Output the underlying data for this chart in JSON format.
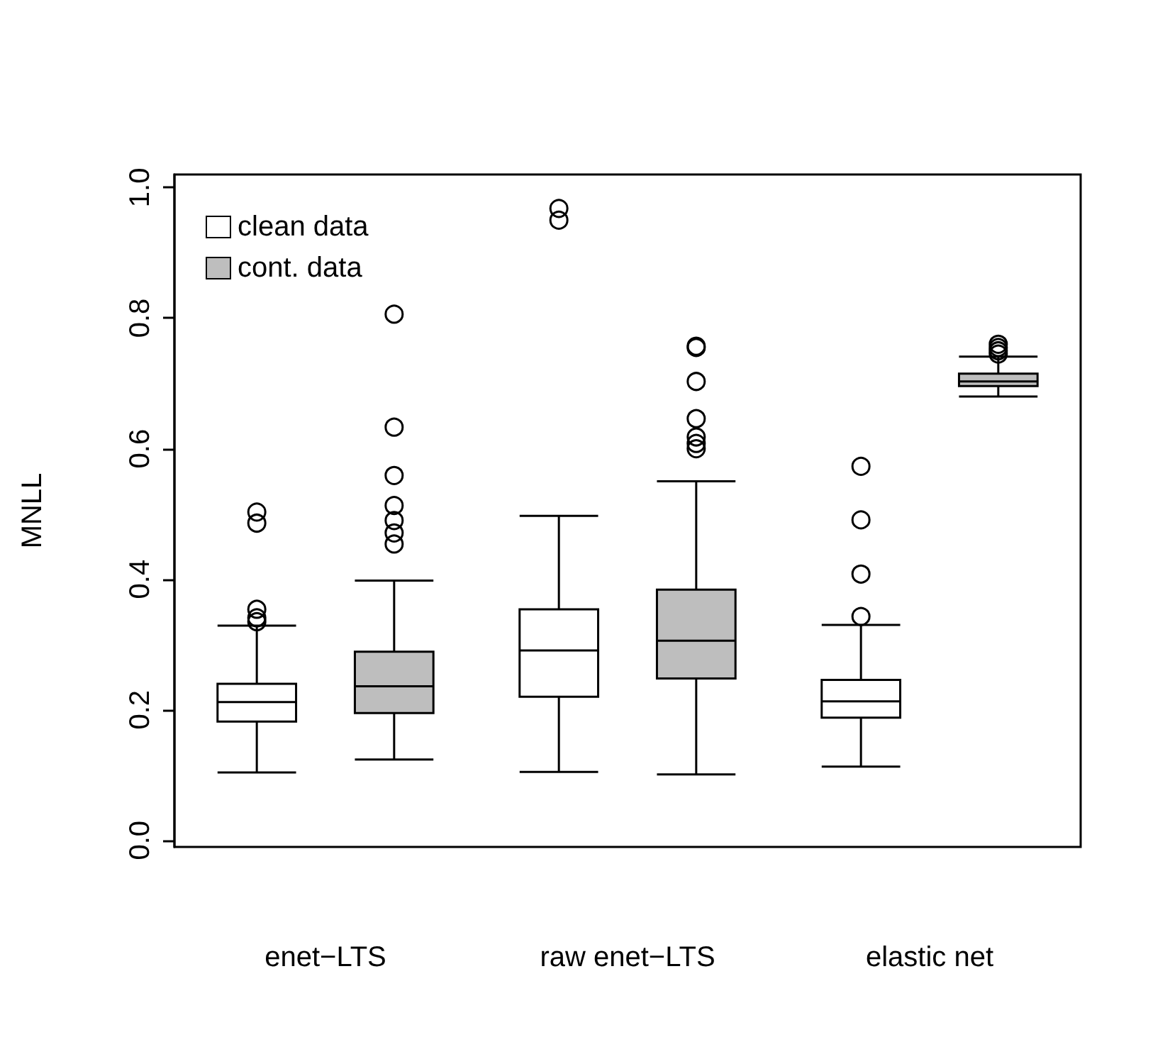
{
  "chart_data": {
    "type": "box",
    "ylabel": "MNLL",
    "categories": [
      "enet−LTS",
      "raw enet−LTS",
      "elastic net"
    ],
    "series": [
      {
        "name": "clean data",
        "color": "#ffffff",
        "boxes": [
          {
            "low": 0.104,
            "q1": 0.182,
            "median": 0.212,
            "q3": 0.24,
            "high": 0.329,
            "outliers": [
              0.335,
              0.341,
              0.354,
              0.486,
              0.503
            ]
          },
          {
            "low": 0.105,
            "q1": 0.22,
            "median": 0.291,
            "q3": 0.354,
            "high": 0.497,
            "outliers": [
              0.95,
              0.968
            ]
          },
          {
            "low": 0.113,
            "q1": 0.188,
            "median": 0.213,
            "q3": 0.246,
            "high": 0.33,
            "outliers": [
              0.343,
              0.408,
              0.491,
              0.573
            ]
          }
        ]
      },
      {
        "name": "cont. data",
        "color": "#bebebe",
        "boxes": [
          {
            "low": 0.124,
            "q1": 0.195,
            "median": 0.236,
            "q3": 0.289,
            "high": 0.398,
            "outliers": [
              0.454,
              0.471,
              0.49,
              0.513,
              0.559,
              0.633,
              0.806
            ]
          },
          {
            "low": 0.101,
            "q1": 0.248,
            "median": 0.306,
            "q3": 0.384,
            "high": 0.55,
            "outliers": [
              0.6,
              0.608,
              0.618,
              0.646,
              0.703,
              0.755,
              0.757
            ]
          },
          {
            "low": 0.68,
            "q1": 0.696,
            "median": 0.703,
            "q3": 0.715,
            "high": 0.741,
            "outliers": [
              0.745,
              0.75,
              0.755,
              0.76
            ]
          }
        ]
      }
    ],
    "ylim": [
      -0.01,
      1.02
    ],
    "yticks": [
      {
        "value": 0,
        "label": "0.0"
      },
      {
        "value": 0.2,
        "label": "0.2"
      },
      {
        "value": 0.4,
        "label": "0.4"
      },
      {
        "value": 0.6,
        "label": "0.6"
      },
      {
        "value": 0.8,
        "label": "0.8"
      },
      {
        "value": 1,
        "label": "1.0"
      }
    ],
    "grid": false,
    "legend": "top left"
  }
}
